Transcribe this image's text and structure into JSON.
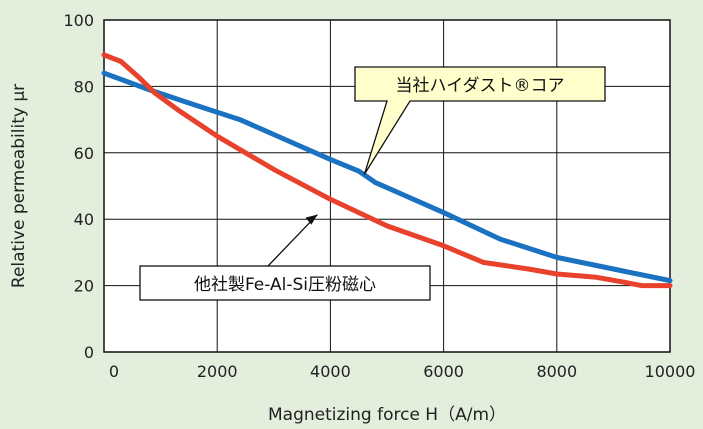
{
  "chart_data": {
    "type": "line",
    "xlabel": "Magnetizing force H（A/m）",
    "ylabel": "Relative permeability μr",
    "xlim": [
      0,
      10000
    ],
    "ylim": [
      0,
      100
    ],
    "x_ticks": [
      0,
      2000,
      4000,
      6000,
      8000,
      10000
    ],
    "y_ticks": [
      0,
      20,
      40,
      60,
      80,
      100
    ],
    "x_tick_labels": [
      "0",
      "2000",
      "4000",
      "6000",
      "8000",
      "10000"
    ],
    "y_tick_labels": [
      "0",
      "20",
      "40",
      "60",
      "80",
      "100"
    ],
    "grid": true,
    "series": [
      {
        "name": "当社ハイダスト®コア",
        "color": "#1a72c0",
        "x": [
          0,
          800,
          1500,
          2400,
          3200,
          4000,
          4500,
          4800,
          5200,
          6000,
          7000,
          8000,
          9000,
          10000
        ],
        "y": [
          84,
          79,
          75,
          70,
          64,
          58,
          54.5,
          51,
          48,
          42,
          34,
          28.5,
          25,
          21.5
        ]
      },
      {
        "name": "他社製Fe-Al-Si圧粉磁心",
        "color": "#e8412c",
        "x": [
          0,
          300,
          600,
          900,
          1300,
          2000,
          3000,
          4000,
          5000,
          6000,
          6700,
          7500,
          8000,
          8700,
          9200,
          9500,
          10000
        ],
        "y": [
          89.5,
          87.5,
          83,
          78,
          73,
          65,
          55,
          46,
          38,
          32,
          27,
          25,
          23.5,
          22.5,
          21,
          20,
          20
        ]
      }
    ],
    "annotations": [
      {
        "text": "当社ハイダスト®コア",
        "points_to": {
          "x": 4600,
          "y": 53.5
        }
      },
      {
        "text": "他社製Fe-Al-Si圧粉磁心",
        "points_to": {
          "x": 3700,
          "y": 45
        }
      }
    ]
  }
}
